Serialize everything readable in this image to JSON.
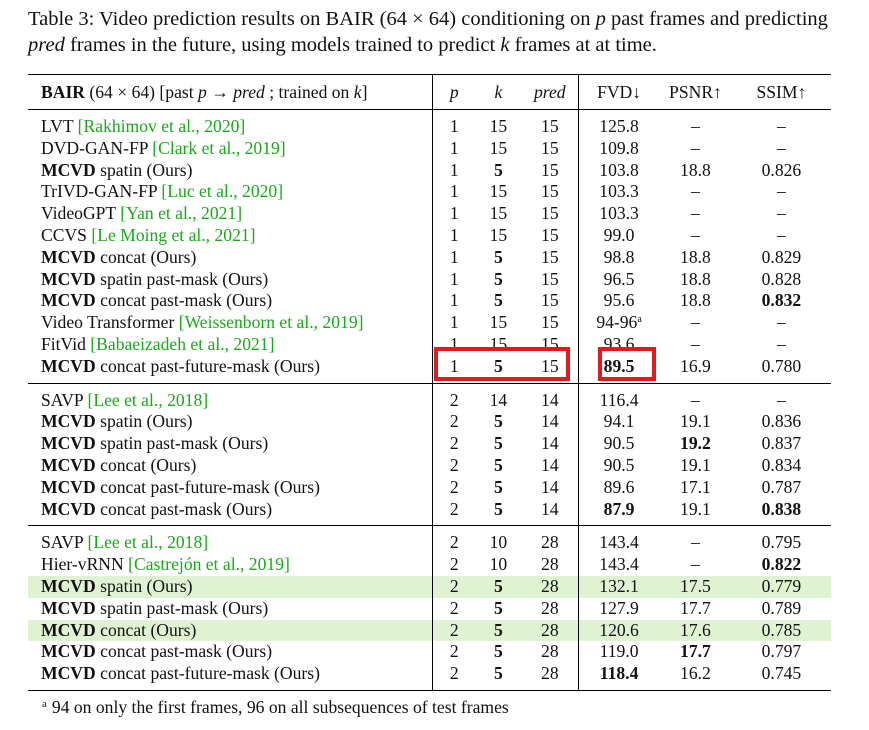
{
  "caption": {
    "prefix": "Table 3: Video prediction results on BAIR (64 × 64) conditioning on ",
    "p": "p",
    "middle": " past frames and predicting ",
    "pred": "pred",
    "middle2": " frames in the future, using models trained to predict ",
    "k": "k",
    "suffix": " frames at at time."
  },
  "header": {
    "name_bold": "BAIR",
    "name_rest": " (64 × 64) [past ",
    "name_p": "p",
    "name_arrow": " → ",
    "name_pred": "pred",
    "name_mid": " ; trained on ",
    "name_k": "k",
    "name_end": "]",
    "p": "p",
    "k": "k",
    "pred": "pred",
    "fvd": "FVD↓",
    "psnr": "PSNR↑",
    "ssim": "SSIM↑"
  },
  "groups": [
    {
      "rows": [
        {
          "pre": "LVT ",
          "cite": "[Rakhimov et al., 2020]",
          "p": "1",
          "k": "15",
          "pred": "15",
          "fvd": "125.8",
          "psnr": "–",
          "ssim": "–"
        },
        {
          "pre": "DVD-GAN-FP ",
          "cite": "[Clark et al., 2019]",
          "p": "1",
          "k": "15",
          "pred": "15",
          "fvd": "109.8",
          "psnr": "–",
          "ssim": "–"
        },
        {
          "bold": "MCVD",
          "pre": " spatin (Ours)",
          "p": "1",
          "k": "5",
          "kb": true,
          "pred": "15",
          "fvd": "103.8",
          "psnr": "18.8",
          "ssim": "0.826"
        },
        {
          "pre": "TrIVD-GAN-FP ",
          "cite": "[Luc et al., 2020]",
          "p": "1",
          "k": "15",
          "pred": "15",
          "fvd": "103.3",
          "psnr": "–",
          "ssim": "–"
        },
        {
          "pre": "VideoGPT ",
          "cite": "[Yan et al., 2021]",
          "p": "1",
          "k": "15",
          "pred": "15",
          "fvd": "103.3",
          "psnr": "–",
          "ssim": "–"
        },
        {
          "pre": "CCVS ",
          "cite": "[Le Moing et al., 2021]",
          "p": "1",
          "k": "15",
          "pred": "15",
          "fvd": "99.0",
          "psnr": "–",
          "ssim": "–"
        },
        {
          "bold": "MCVD",
          "pre": " concat (Ours)",
          "p": "1",
          "k": "5",
          "kb": true,
          "pred": "15",
          "fvd": "98.8",
          "psnr": "18.8",
          "ssim": "0.829"
        },
        {
          "bold": "MCVD",
          "pre": " spatin past-mask (Ours)",
          "p": "1",
          "k": "5",
          "kb": true,
          "pred": "15",
          "fvd": "96.5",
          "psnr": "18.8",
          "ssim": "0.828"
        },
        {
          "bold": "MCVD",
          "pre": " concat past-mask (Ours)",
          "p": "1",
          "k": "5",
          "kb": true,
          "pred": "15",
          "fvd": "95.6",
          "psnr": "18.8",
          "ssim": "0.832",
          "ssimb": true
        },
        {
          "pre": "Video Transformer ",
          "cite": "[Weissenborn et al., 2019]",
          "p": "1",
          "k": "15",
          "pred": "15",
          "fvd": "94-96",
          "fvdsup": "a",
          "psnr": "–",
          "ssim": "–"
        },
        {
          "pre": "FitVid ",
          "cite": "[Babaeizadeh et al., 2021]",
          "p": "1",
          "k": "15",
          "pred": "15",
          "fvd": "93.6",
          "psnr": "–",
          "ssim": "–"
        },
        {
          "bold": "MCVD",
          "pre": " concat past-future-mask (Ours)",
          "p": "1",
          "k": "5",
          "kb": true,
          "pred": "15",
          "fvd": "89.5",
          "fvdb": true,
          "psnr": "16.9",
          "ssim": "0.780"
        }
      ]
    },
    {
      "rows": [
        {
          "pre": "SAVP ",
          "cite": "[Lee et al., 2018]",
          "p": "2",
          "k": "14",
          "pred": "14",
          "fvd": "116.4",
          "psnr": "–",
          "ssim": "–"
        },
        {
          "bold": "MCVD",
          "pre": " spatin (Ours)",
          "p": "2",
          "k": "5",
          "kb": true,
          "pred": "14",
          "fvd": "94.1",
          "psnr": "19.1",
          "ssim": "0.836"
        },
        {
          "bold": "MCVD",
          "pre": " spatin past-mask (Ours)",
          "p": "2",
          "k": "5",
          "kb": true,
          "pred": "14",
          "fvd": "90.5",
          "psnr": "19.2",
          "psnrb": true,
          "ssim": "0.837"
        },
        {
          "bold": "MCVD",
          "pre": " concat (Ours)",
          "p": "2",
          "k": "5",
          "kb": true,
          "pred": "14",
          "fvd": "90.5",
          "psnr": "19.1",
          "ssim": "0.834"
        },
        {
          "bold": "MCVD",
          "pre": " concat past-future-mask (Ours)",
          "p": "2",
          "k": "5",
          "kb": true,
          "pred": "14",
          "fvd": "89.6",
          "psnr": "17.1",
          "ssim": "0.787"
        },
        {
          "bold": "MCVD",
          "pre": " concat past-mask (Ours)",
          "p": "2",
          "k": "5",
          "kb": true,
          "pred": "14",
          "fvd": "87.9",
          "fvdb": true,
          "psnr": "19.1",
          "ssim": "0.838",
          "ssimb": true
        }
      ]
    },
    {
      "rows": [
        {
          "pre": "SAVP ",
          "cite": "[Lee et al., 2018]",
          "p": "2",
          "k": "10",
          "pred": "28",
          "fvd": "143.4",
          "psnr": "–",
          "ssim": "0.795"
        },
        {
          "pre": "Hier-vRNN  ",
          "cite": "[Castrejón et al., 2019]",
          "p": "2",
          "k": "10",
          "pred": "28",
          "fvd": "143.4",
          "psnr": "–",
          "ssim": "0.822",
          "ssimb": true
        },
        {
          "bold": "MCVD",
          "pre": " spatin (Ours)",
          "p": "2",
          "k": "5",
          "kb": true,
          "pred": "28",
          "fvd": "132.1",
          "psnr": "17.5",
          "ssim": "0.779",
          "hl": true
        },
        {
          "bold": "MCVD",
          "pre": " spatin past-mask (Ours)",
          "p": "2",
          "k": "5",
          "kb": true,
          "pred": "28",
          "fvd": "127.9",
          "psnr": "17.7",
          "ssim": "0.789"
        },
        {
          "bold": "MCVD",
          "pre": " concat (Ours)",
          "p": "2",
          "k": "5",
          "kb": true,
          "pred": "28",
          "fvd": "120.6",
          "psnr": "17.6",
          "ssim": "0.785",
          "hl": true
        },
        {
          "bold": "MCVD",
          "pre": " concat past-mask (Ours)",
          "p": "2",
          "k": "5",
          "kb": true,
          "pred": "28",
          "fvd": "119.0",
          "psnr": "17.7",
          "psnrb": true,
          "ssim": "0.797"
        },
        {
          "bold": "MCVD",
          "pre": " concat past-future-mask (Ours)",
          "p": "2",
          "k": "5",
          "kb": true,
          "pred": "28",
          "fvd": "118.4",
          "fvdb": true,
          "psnr": "16.2",
          "ssim": "0.745"
        }
      ]
    }
  ],
  "footnote": {
    "mark": "a",
    "text": "94 on only the first frames, 96 on all subsequences of test frames"
  },
  "annotation_color": "#e3191d",
  "highlight_color": "#dff3d2"
}
